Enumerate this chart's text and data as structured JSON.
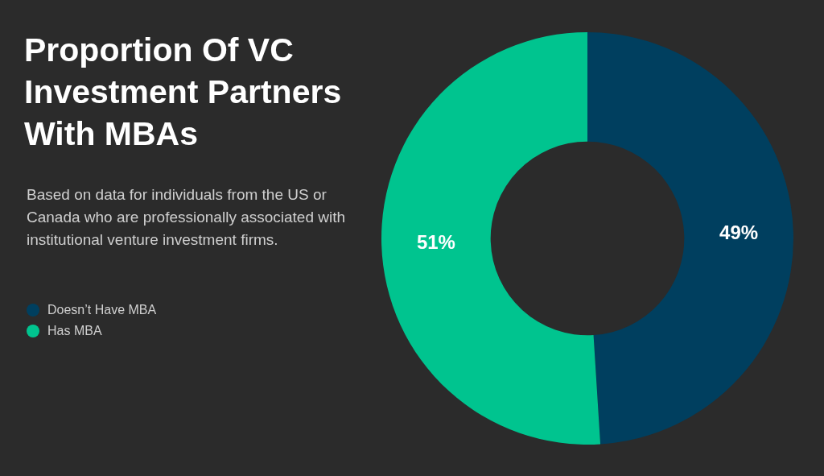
{
  "chart_data": {
    "type": "donut",
    "title": "Proportion Of VC Investment Partners With MBAs",
    "subtitle": "Based on data for individuals from the US or Canada who are professionally associated with institutional venture investment firms.",
    "categories": [
      "Doesn’t Have MBA",
      "Has MBA"
    ],
    "values": [
      49,
      51
    ],
    "colors": [
      "#003f5f",
      "#00c48f"
    ],
    "value_labels": [
      "49%",
      "51%"
    ],
    "legend": "left"
  }
}
